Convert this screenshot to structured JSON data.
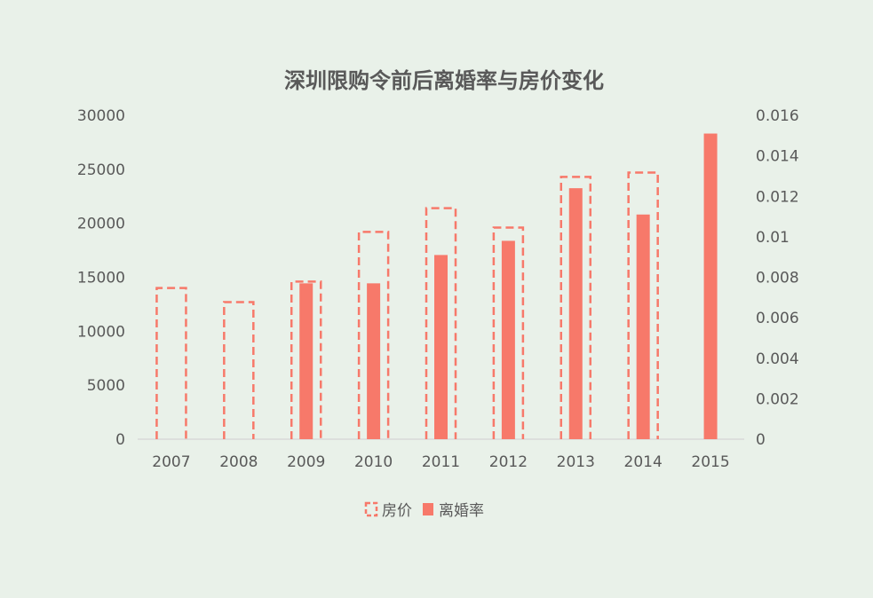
{
  "chart_data": {
    "type": "bar",
    "title": "深圳限购令前后离婚率与房价变化",
    "categories": [
      "2007",
      "2008",
      "2009",
      "2010",
      "2011",
      "2012",
      "2013",
      "2014",
      "2015"
    ],
    "series": [
      {
        "name": "房价",
        "axis": "left",
        "style": "dashed-outline",
        "values": [
          14000,
          12700,
          14600,
          19200,
          21400,
          19600,
          24300,
          24700,
          null
        ]
      },
      {
        "name": "离婚率",
        "axis": "right",
        "style": "solid",
        "values": [
          null,
          null,
          0.0077,
          0.0077,
          0.0091,
          0.0098,
          0.0124,
          0.0111,
          0.0151
        ]
      }
    ],
    "y_left": {
      "min": 0,
      "max": 30000,
      "ticks": [
        "0",
        "5000",
        "10000",
        "15000",
        "20000",
        "25000",
        "30000"
      ]
    },
    "y_right": {
      "min": 0,
      "max": 0.016,
      "ticks": [
        "0",
        "0.002",
        "0.004",
        "0.006",
        "0.008",
        "0.01",
        "0.012",
        "0.014",
        "0.016"
      ]
    },
    "legend_position": "bottom",
    "grid": false,
    "colors": {
      "bar": "#f7796a",
      "axis": "#d9d9d9",
      "text": "#595959",
      "background": "#e9f1e9"
    }
  }
}
